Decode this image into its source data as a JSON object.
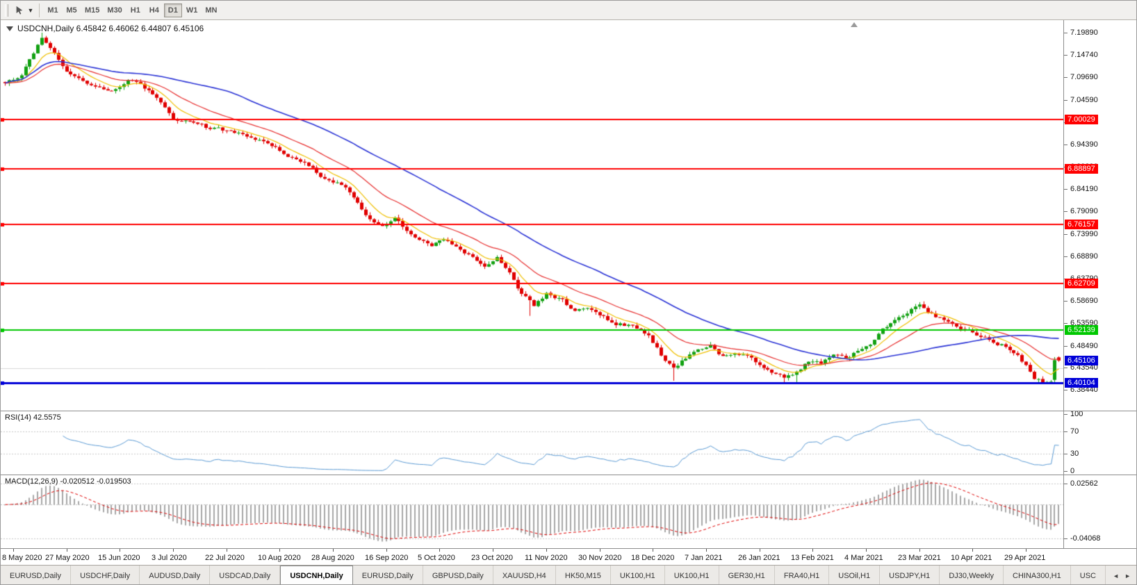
{
  "toolbar": {
    "timeframes": [
      {
        "label": "M1",
        "active": false
      },
      {
        "label": "M5",
        "active": false
      },
      {
        "label": "M15",
        "active": false
      },
      {
        "label": "M30",
        "active": false
      },
      {
        "label": "H1",
        "active": false
      },
      {
        "label": "H4",
        "active": false
      },
      {
        "label": "D1",
        "active": true
      },
      {
        "label": "W1",
        "active": false
      },
      {
        "label": "MN",
        "active": false
      }
    ]
  },
  "chart_data": {
    "type": "candlestick",
    "symbol": "USDCNH",
    "period": "Daily",
    "title_text": "USDCNH,Daily 6.45842 6.46062 6.44807 6.45106",
    "ohlc_display": {
      "open": "6.45842",
      "high": "6.46062",
      "low": "6.44807",
      "close": "6.45106"
    },
    "x_axis_dates": [
      "8 May 2020",
      "27 May 2020",
      "15 Jun 2020",
      "3 Jul 2020",
      "22 Jul 2020",
      "10 Aug 2020",
      "28 Aug 2020",
      "16 Sep 2020",
      "5 Oct 2020",
      "23 Oct 2020",
      "11 Nov 2020",
      "30 Nov 2020",
      "18 Dec 2020",
      "7 Jan 2021",
      "26 Jan 2021",
      "13 Feb 2021",
      "4 Mar 2021",
      "23 Mar 2021",
      "10 Apr 2021",
      "29 Apr 2021"
    ],
    "price_scale_ticks": [
      "7.19890",
      "7.14740",
      "7.09690",
      "7.04590",
      "6.99490",
      "6.94390",
      "6.89290",
      "6.84190",
      "6.79090",
      "6.73990",
      "6.68890",
      "6.63790",
      "6.58690",
      "6.53590",
      "6.48490",
      "6.43540",
      "6.38440"
    ],
    "price_range": {
      "top": 7.2274,
      "bottom": 6.3369
    },
    "bars": 258,
    "seed": 9,
    "trend_anchors": [
      [
        0,
        7.086
      ],
      [
        4,
        7.102
      ],
      [
        9,
        7.186
      ],
      [
        12,
        7.152
      ],
      [
        15,
        7.106
      ],
      [
        20,
        7.078
      ],
      [
        26,
        7.068
      ],
      [
        30,
        7.09
      ],
      [
        34,
        7.073
      ],
      [
        38,
        7.044
      ],
      [
        41,
        7.006
      ],
      [
        45,
        6.995
      ],
      [
        49,
        6.983
      ],
      [
        52,
        6.978
      ],
      [
        56,
        6.97
      ],
      [
        60,
        6.957
      ],
      [
        65,
        6.944
      ],
      [
        69,
        6.917
      ],
      [
        73,
        6.9
      ],
      [
        78,
        6.868
      ],
      [
        82,
        6.852
      ],
      [
        86,
        6.814
      ],
      [
        89,
        6.772
      ],
      [
        92,
        6.757
      ],
      [
        95,
        6.777
      ],
      [
        98,
        6.743
      ],
      [
        101,
        6.728
      ],
      [
        104,
        6.712
      ],
      [
        107,
        6.726
      ],
      [
        110,
        6.711
      ],
      [
        113,
        6.69
      ],
      [
        117,
        6.663
      ],
      [
        120,
        6.69
      ],
      [
        123,
        6.654
      ],
      [
        126,
        6.601
      ],
      [
        129,
        6.576
      ],
      [
        132,
        6.604
      ],
      [
        136,
        6.588
      ],
      [
        139,
        6.561
      ],
      [
        142,
        6.574
      ],
      [
        145,
        6.551
      ],
      [
        149,
        6.537
      ],
      [
        153,
        6.528
      ],
      [
        157,
        6.509
      ],
      [
        160,
        6.463
      ],
      [
        163,
        6.436
      ],
      [
        166,
        6.456
      ],
      [
        169,
        6.472
      ],
      [
        172,
        6.483
      ],
      [
        175,
        6.461
      ],
      [
        178,
        6.472
      ],
      [
        181,
        6.458
      ],
      [
        184,
        6.441
      ],
      [
        187,
        6.428
      ],
      [
        190,
        6.412
      ],
      [
        193,
        6.425
      ],
      [
        196,
        6.452
      ],
      [
        199,
        6.446
      ],
      [
        202,
        6.462
      ],
      [
        205,
        6.455
      ],
      [
        208,
        6.472
      ],
      [
        211,
        6.492
      ],
      [
        214,
        6.52
      ],
      [
        217,
        6.543
      ],
      [
        220,
        6.562
      ],
      [
        223,
        6.578
      ],
      [
        226,
        6.558
      ],
      [
        229,
        6.542
      ],
      [
        232,
        6.528
      ],
      [
        235,
        6.52
      ],
      [
        238,
        6.506
      ],
      [
        241,
        6.494
      ],
      [
        244,
        6.483
      ],
      [
        247,
        6.462
      ],
      [
        249,
        6.44
      ],
      [
        251,
        6.412
      ],
      [
        253,
        6.404
      ],
      [
        255,
        6.408
      ],
      [
        256,
        6.452
      ],
      [
        257,
        6.45106
      ]
    ],
    "wick_spikes": [
      {
        "bar": 9,
        "high": 7.1989
      },
      {
        "bar": 97,
        "high": 6.776
      },
      {
        "bar": 128,
        "low": 6.553
      },
      {
        "bar": 163,
        "low": 6.405
      },
      {
        "bar": 190,
        "low": 6.4012
      },
      {
        "bar": 193,
        "low": 6.402
      },
      {
        "bar": 224,
        "high": 6.586
      },
      {
        "bar": 252,
        "low": 6.4011
      },
      {
        "bar": 254,
        "low": 6.403
      }
    ],
    "forced_candles": [
      {
        "bar": 256,
        "o": 6.407,
        "h": 6.459,
        "l": 6.402,
        "c": 6.452
      }
    ],
    "last_candle": {
      "o": 6.45842,
      "h": 6.46062,
      "l": 6.44807,
      "c": 6.45106
    },
    "colors": {
      "up": "#12A112",
      "down": "#E00000",
      "ma_fast": "#F0C000",
      "ma_mid": "#E83030",
      "ma_slow": "#2B34D6"
    },
    "moving_averages": [
      {
        "type": "ema",
        "period": 8,
        "color_key": "ma_fast",
        "width": 1.2
      },
      {
        "type": "ema",
        "period": 21,
        "color_key": "ma_mid",
        "width": 1.2
      },
      {
        "type": "sma",
        "period": 50,
        "color_key": "ma_slow",
        "width": 1.6
      }
    ],
    "hlines": [
      {
        "price": 6.434,
        "label": null,
        "color": "#D8D8D8",
        "width": 1
      },
      {
        "price": 7.00029,
        "label": "7.00029",
        "color": "#FF0000",
        "width": 2
      },
      {
        "price": 6.88897,
        "label": "6.88897",
        "color": "#FF0000",
        "width": 2
      },
      {
        "price": 6.76157,
        "label": "6.76157",
        "color": "#FF0000",
        "width": 2
      },
      {
        "price": 6.62709,
        "label": "6.62709",
        "color": "#FF0000",
        "width": 2
      },
      {
        "price": 6.52139,
        "label": "6.52139",
        "color": "#00C800",
        "width": 2
      },
      {
        "price": 6.40104,
        "label": "6.40104",
        "color": "#0000D8",
        "width": 3
      }
    ],
    "current_price_tag": {
      "price": 6.45106,
      "label": "6.45106",
      "bg": "#0000D8"
    },
    "chart_shift_marker_x_frac": 0.8,
    "indicators": {
      "rsi": {
        "label": "RSI(14) 42.5575",
        "period": 14,
        "value": "42.5575",
        "scale_labels": [
          "100",
          "70",
          "30",
          "0"
        ],
        "dotted_levels": [
          70,
          30
        ],
        "line_color": "#5B9BD5",
        "range": [
          0,
          100
        ]
      },
      "macd": {
        "label": "MACD(12,26,9) -0.020512 -0.019503",
        "fast": 12,
        "slow": 26,
        "signal": 9,
        "values": [
          "-0.020512",
          "-0.019503"
        ],
        "scale_labels": [
          "0.02562",
          "-0.04068"
        ],
        "range": [
          -0.05,
          0.032
        ],
        "histogram_color": "#A8A8A8",
        "signal_color": "#E00000",
        "zero_line_color": "#C0C0C0"
      }
    }
  },
  "bottom_tabs": {
    "items": [
      {
        "label": "EURUSD,Daily",
        "active": false
      },
      {
        "label": "USDCHF,Daily",
        "active": false
      },
      {
        "label": "AUDUSD,Daily",
        "active": false
      },
      {
        "label": "USDCAD,Daily",
        "active": false
      },
      {
        "label": "USDCNH,Daily",
        "active": true
      },
      {
        "label": "EURUSD,Daily",
        "active": false
      },
      {
        "label": "GBPUSD,Daily",
        "active": false
      },
      {
        "label": "XAUUSD,H4",
        "active": false
      },
      {
        "label": "HK50,M15",
        "active": false
      },
      {
        "label": "UK100,H1",
        "active": false
      },
      {
        "label": "UK100,H1",
        "active": false
      },
      {
        "label": "GER30,H1",
        "active": false
      },
      {
        "label": "FRA40,H1",
        "active": false
      },
      {
        "label": "USOil,H1",
        "active": false
      },
      {
        "label": "USDJPY,H1",
        "active": false
      },
      {
        "label": "DJ30,Weekly",
        "active": false
      },
      {
        "label": "CHINA300,H1",
        "active": false
      },
      {
        "label": "USC",
        "active": false
      }
    ],
    "nav_left": "◄",
    "nav_right": "►"
  }
}
